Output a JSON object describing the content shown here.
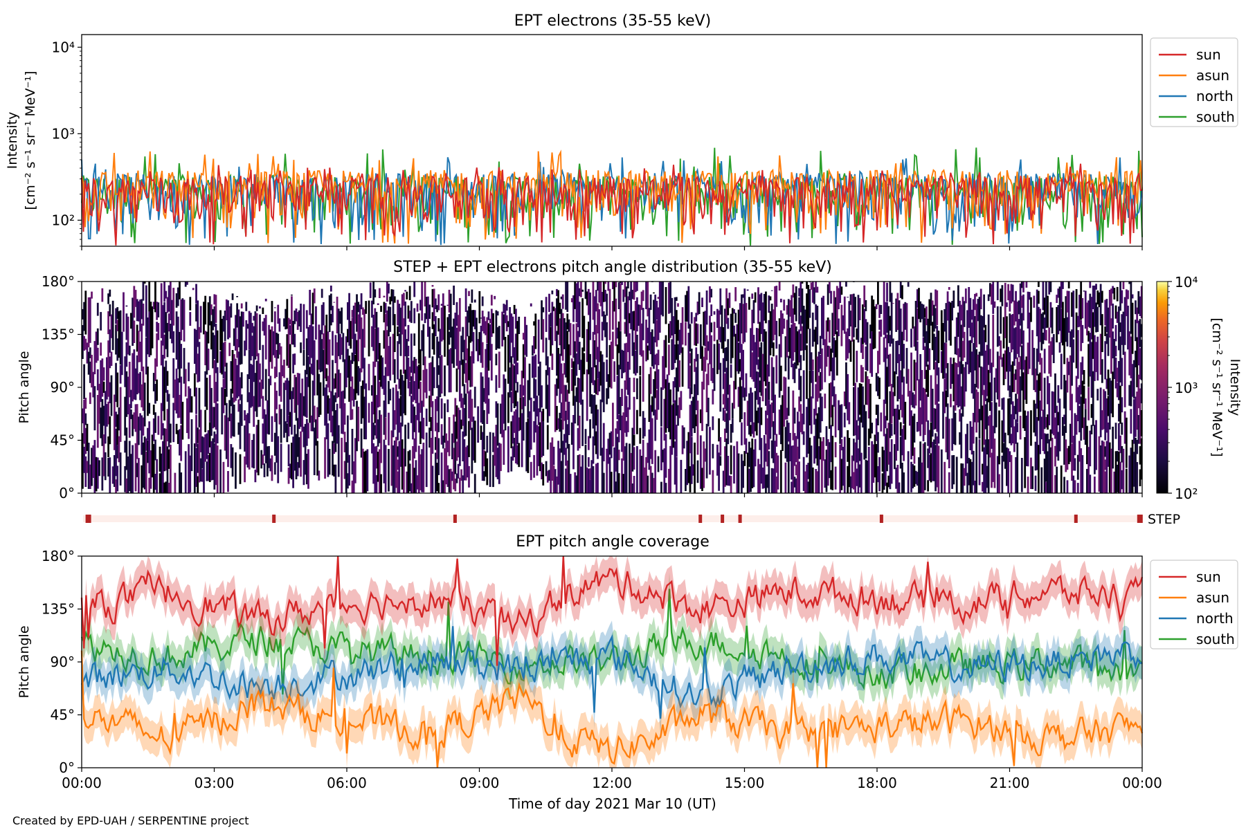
{
  "footer": "Created by EPD-UAH / SERPENTINE project",
  "colors": {
    "sun": "#d62728",
    "asun": "#ff7f0e",
    "north": "#1f77b4",
    "south": "#2ca02c",
    "step_bar_bg": "#fdeeea",
    "step_mark": "#b22222"
  },
  "chart_data": [
    {
      "type": "line",
      "title": "EPT electrons (35-55 keV)",
      "ylabel": "Intensity",
      "ylabel_units": "[cm⁻² s⁻¹ sr⁻¹ MeV⁻¹]",
      "yscale": "log",
      "ylim": [
        50,
        14000
      ],
      "yticks": [
        {
          "value": 100,
          "label": "10²"
        },
        {
          "value": 1000,
          "label": "10³"
        },
        {
          "value": 10000,
          "label": "10⁴"
        }
      ],
      "xlim": [
        "2021-03-10 00:00",
        "2021-03-11 00:00"
      ],
      "legend": "outside-right-top",
      "series": [
        {
          "name": "sun",
          "typical_range": [
            50,
            320
          ],
          "peak_max": 450
        },
        {
          "name": "asun",
          "typical_range": [
            50,
            380
          ],
          "peak_max": 650
        },
        {
          "name": "north",
          "typical_range": [
            50,
            350
          ],
          "peak_max": 560
        },
        {
          "name": "south",
          "typical_range": [
            50,
            330
          ],
          "peak_max": 720
        }
      ]
    },
    {
      "type": "heatmap",
      "title": "STEP + EPT electrons pitch angle distribution (35-55 keV)",
      "ylabel": "Pitch angle",
      "ylim": [
        0,
        180
      ],
      "yticks": [
        {
          "value": 0,
          "label": "0°"
        },
        {
          "value": 45,
          "label": "45°"
        },
        {
          "value": 90,
          "label": "90°"
        },
        {
          "value": 135,
          "label": "135°"
        },
        {
          "value": 180,
          "label": "180°"
        }
      ],
      "xlim": [
        "2021-03-10 00:00",
        "2021-03-11 00:00"
      ],
      "colorbar": {
        "label": "Intensity",
        "units": "[cm⁻² s⁻¹ sr⁻¹ MeV⁻¹]",
        "scale": "log",
        "range": [
          100,
          10000
        ],
        "ticks": [
          {
            "value": 100,
            "label": "10²"
          },
          {
            "value": 1000,
            "label": "10³"
          },
          {
            "value": 10000,
            "label": "10⁴"
          }
        ],
        "colormap": "inferno"
      },
      "typical_intensity": [
        100,
        400
      ]
    },
    {
      "type": "bar",
      "label": "STEP",
      "marks_hours": [
        0.15,
        4.35,
        8.45,
        14.0,
        14.5,
        14.9,
        18.1,
        22.5,
        23.95
      ]
    },
    {
      "type": "line",
      "title": "EPT pitch angle coverage",
      "ylabel": "Pitch angle",
      "xlabel": "Time of day 2021 Mar 10 (UT)",
      "ylim": [
        0,
        180
      ],
      "yticks": [
        {
          "value": 0,
          "label": "0°"
        },
        {
          "value": 45,
          "label": "45°"
        },
        {
          "value": 90,
          "label": "90°"
        },
        {
          "value": 135,
          "label": "135°"
        },
        {
          "value": 180,
          "label": "180°"
        }
      ],
      "xticks": [
        "00:00",
        "03:00",
        "06:00",
        "09:00",
        "12:00",
        "15:00",
        "18:00",
        "21:00",
        "00:00"
      ],
      "xlim": [
        "2021-03-10 00:00",
        "2021-03-11 00:00"
      ],
      "legend": "outside-right-top",
      "series": [
        {
          "name": "sun",
          "hours": [
            0,
            2,
            4,
            6,
            8,
            10,
            11,
            12,
            13,
            14,
            16,
            18,
            20,
            22,
            24
          ],
          "values": [
            135,
            150,
            125,
            140,
            145,
            120,
            150,
            160,
            150,
            135,
            150,
            145,
            140,
            150,
            145
          ]
        },
        {
          "name": "asun",
          "hours": [
            0,
            2,
            4,
            6,
            8,
            10,
            11,
            12,
            13,
            14,
            16,
            18,
            20,
            22,
            24
          ],
          "values": [
            45,
            25,
            55,
            40,
            30,
            60,
            25,
            15,
            25,
            45,
            30,
            35,
            40,
            25,
            35
          ]
        },
        {
          "name": "north",
          "hours": [
            0,
            2,
            4,
            6,
            8,
            10,
            12,
            14,
            16,
            18,
            20,
            22,
            24
          ],
          "values": [
            75,
            85,
            70,
            80,
            90,
            85,
            95,
            60,
            85,
            95,
            85,
            90,
            100
          ]
        },
        {
          "name": "south",
          "hours": [
            0,
            2,
            4,
            6,
            8,
            10,
            12,
            14,
            16,
            18,
            20,
            22,
            24
          ],
          "values": [
            105,
            95,
            110,
            100,
            95,
            90,
            90,
            110,
            95,
            80,
            85,
            90,
            80
          ]
        }
      ]
    }
  ]
}
